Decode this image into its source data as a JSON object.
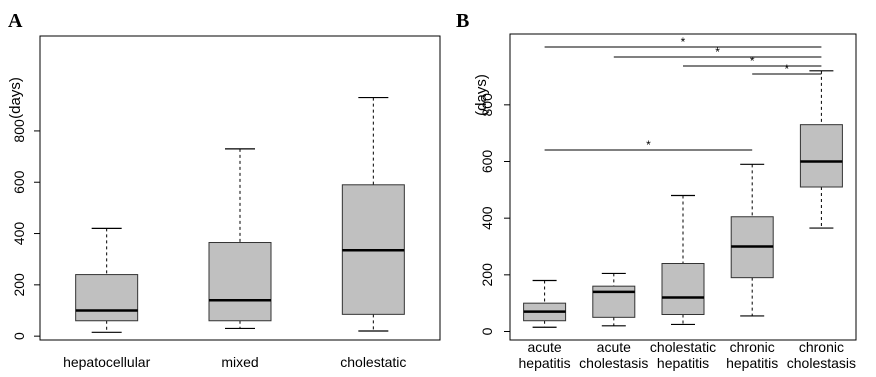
{
  "chart_data": [
    {
      "type": "box",
      "panel": "A",
      "ylabel": "(days)",
      "yticks": [
        0,
        200,
        400,
        600,
        800
      ],
      "ylim": [
        -15,
        1170
      ],
      "categories": [
        "hepatocellular",
        "mixed",
        "cholestatic"
      ],
      "boxes": [
        {
          "category": "hepatocellular",
          "whisker_low": 15,
          "q1": 60,
          "median": 100,
          "q3": 240,
          "whisker_high": 420
        },
        {
          "category": "mixed",
          "whisker_low": 30,
          "q1": 60,
          "median": 140,
          "q3": 365,
          "whisker_high": 730
        },
        {
          "category": "cholestatic",
          "whisker_low": 20,
          "q1": 85,
          "median": 335,
          "q3": 590,
          "whisker_high": 930
        }
      ],
      "box_color": "#c0c0c0"
    },
    {
      "type": "box",
      "panel": "B",
      "ylabel": "(days)",
      "yticks": [
        0,
        200,
        400,
        600,
        800
      ],
      "ylim": [
        -30,
        1050
      ],
      "categories": [
        {
          "line1": "acute",
          "line2": "hepatitis"
        },
        {
          "line1": "acute",
          "line2": "cholestasis"
        },
        {
          "line1": "cholestatic",
          "line2": "hepatitis"
        },
        {
          "line1": "chronic",
          "line2": "hepatitis"
        },
        {
          "line1": "chronic",
          "line2": "cholestasis"
        }
      ],
      "boxes": [
        {
          "whisker_low": 15,
          "q1": 38,
          "median": 70,
          "q3": 100,
          "whisker_high": 180
        },
        {
          "whisker_low": 20,
          "q1": 50,
          "median": 140,
          "q3": 160,
          "whisker_high": 205
        },
        {
          "whisker_low": 25,
          "q1": 60,
          "median": 120,
          "q3": 240,
          "whisker_high": 480
        },
        {
          "whisker_low": 55,
          "q1": 190,
          "median": 300,
          "q3": 405,
          "whisker_high": 590
        },
        {
          "whisker_low": 365,
          "q1": 510,
          "median": 600,
          "q3": 730,
          "whisker_high": 920
        }
      ],
      "box_color": "#c0c0c0",
      "significance": [
        {
          "from": 0,
          "to": 4,
          "label": "*"
        },
        {
          "from": 1,
          "to": 4,
          "label": "*"
        },
        {
          "from": 2,
          "to": 4,
          "label": "*"
        },
        {
          "from": 3,
          "to": 4,
          "label": "*"
        },
        {
          "from": 0,
          "to": 3,
          "label": "*"
        }
      ]
    }
  ]
}
